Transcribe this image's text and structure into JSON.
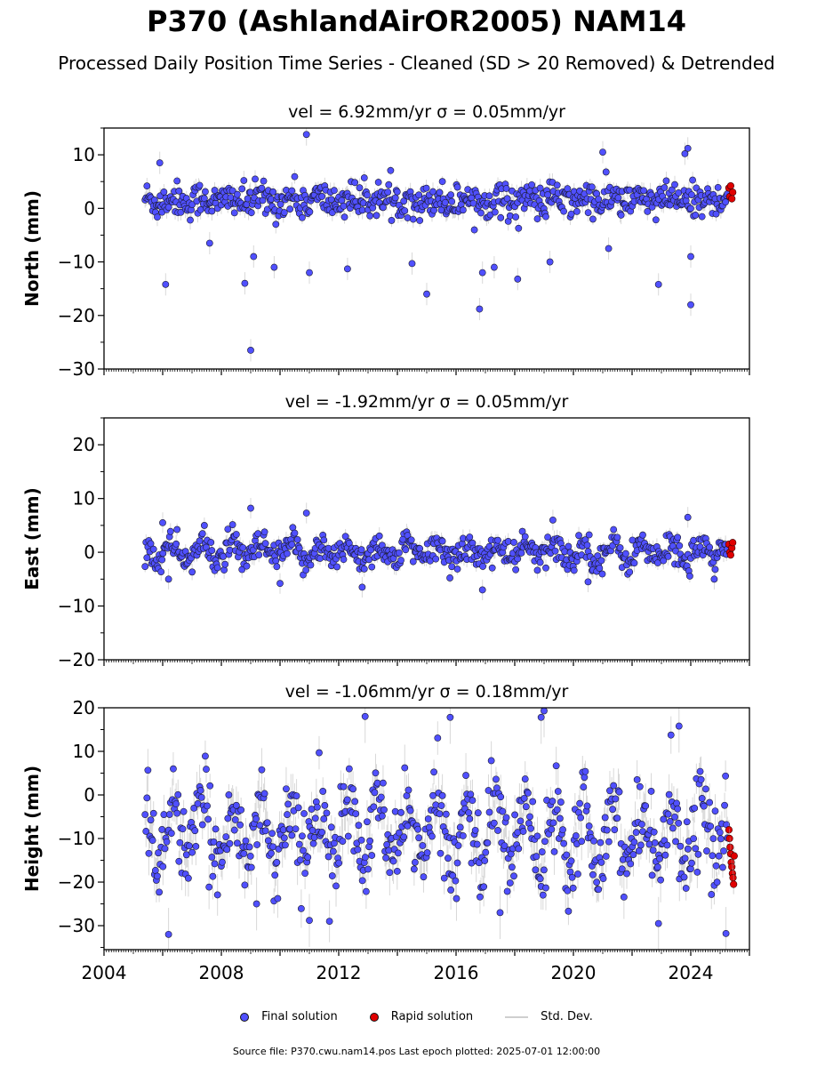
{
  "figure": {
    "title": "P370 (AshlandAirOR2005) NAM14",
    "subtitle": "Processed Daily Position Time Series - Cleaned (SD > 20 Removed) & Detrended",
    "footer": "Source file: P370.cwu.nam14.pos  Last epoch plotted: 2025-07-01 12:00:00"
  },
  "legend": {
    "final_label": "Final solution",
    "rapid_label": "Rapid solution",
    "std_label": "Std. Dev."
  },
  "colors": {
    "final": "#5050ff",
    "rapid": "#e00000",
    "marker_edge": "#1a1a2e",
    "std_dev": "#a8a8a8"
  },
  "chart_data": [
    {
      "type": "scatter",
      "title": "vel = 6.92mm/yr   σ = 0.05mm/yr",
      "ylabel": "North (mm)",
      "xlim": [
        2004.0,
        2026.0
      ],
      "ylim": [
        -30,
        15
      ],
      "yticks": [
        10,
        0,
        -10,
        -20,
        -30
      ],
      "ytick_labels": [
        "10",
        "0",
        "−10",
        "−20",
        "−30"
      ],
      "x_range": [
        2005.4,
        2025.25
      ],
      "center": 1.5,
      "noise": 1.6,
      "seasonal_amp": 0.6,
      "err": 1.3,
      "outliers": [
        {
          "x": 2005.9,
          "y": 8.5
        },
        {
          "x": 2006.1,
          "y": -14.2
        },
        {
          "x": 2007.6,
          "y": -6.5
        },
        {
          "x": 2008.8,
          "y": -14.0
        },
        {
          "x": 2009.0,
          "y": -26.5
        },
        {
          "x": 2009.1,
          "y": -9.0
        },
        {
          "x": 2010.9,
          "y": 13.8
        },
        {
          "x": 2011.0,
          "y": -12.0
        },
        {
          "x": 2012.3,
          "y": -11.3
        },
        {
          "x": 2014.5,
          "y": -10.3
        },
        {
          "x": 2015.0,
          "y": -16.0
        },
        {
          "x": 2016.8,
          "y": -18.8
        },
        {
          "x": 2016.9,
          "y": -12.0
        },
        {
          "x": 2018.1,
          "y": -13.2
        },
        {
          "x": 2019.2,
          "y": -10.0
        },
        {
          "x": 2021.0,
          "y": 10.5
        },
        {
          "x": 2021.2,
          "y": -7.5
        },
        {
          "x": 2022.9,
          "y": -14.2
        },
        {
          "x": 2023.9,
          "y": 11.2
        },
        {
          "x": 2024.0,
          "y": -18.0
        },
        {
          "x": 2023.8,
          "y": 10.2
        },
        {
          "x": 2024.0,
          "y": -9.0
        },
        {
          "x": 2009.8,
          "y": -11.0
        },
        {
          "x": 2017.3,
          "y": -11.0
        }
      ],
      "rapid": {
        "x": [
          2025.3,
          2025.33,
          2025.36,
          2025.4,
          2025.43
        ],
        "y": [
          3.8,
          2.2,
          4.2,
          1.8,
          3.0
        ]
      }
    },
    {
      "type": "scatter",
      "title": "vel = -1.92mm/yr   σ = 0.05mm/yr",
      "ylabel": "East (mm)",
      "xlim": [
        2004.0,
        2026.0
      ],
      "ylim": [
        -20,
        25
      ],
      "yticks": [
        20,
        10,
        0,
        -10,
        -20
      ],
      "ytick_labels": [
        "20",
        "10",
        "0",
        "−10",
        "−20"
      ],
      "x_range": [
        2005.4,
        2025.25
      ],
      "center": 0.0,
      "noise": 1.4,
      "seasonal_amp": 1.4,
      "err": 1.2,
      "outliers": [
        {
          "x": 2009.0,
          "y": 8.2
        },
        {
          "x": 2010.9,
          "y": 7.3
        },
        {
          "x": 2006.0,
          "y": 5.5
        },
        {
          "x": 2019.3,
          "y": 6.0
        },
        {
          "x": 2023.9,
          "y": 6.5
        },
        {
          "x": 2016.9,
          "y": -7.0
        },
        {
          "x": 2012.8,
          "y": -6.5
        },
        {
          "x": 2020.5,
          "y": -5.5
        },
        {
          "x": 2024.8,
          "y": -5.0
        },
        {
          "x": 2006.2,
          "y": -5.0
        },
        {
          "x": 2010.0,
          "y": -5.8
        }
      ],
      "rapid": {
        "x": [
          2025.3,
          2025.33,
          2025.36,
          2025.4,
          2025.43
        ],
        "y": [
          1.5,
          0.0,
          -0.5,
          0.8,
          1.8
        ]
      }
    },
    {
      "type": "scatter",
      "title": "vel = -1.06mm/yr   σ = 0.18mm/yr",
      "ylabel": "Height (mm)",
      "xlim": [
        2004.0,
        2026.0
      ],
      "ylim": [
        -35.5,
        20
      ],
      "yticks": [
        20,
        10,
        0,
        -10,
        -20,
        -30
      ],
      "ytick_labels": [
        "20",
        "10",
        "0",
        "−10",
        "−20",
        "−30"
      ],
      "xticks": [
        2004,
        2008,
        2012,
        2016,
        2020,
        2024
      ],
      "xtick_labels": [
        "2004",
        "2008",
        "2012",
        "2016",
        "2020",
        "2024"
      ],
      "x_range": [
        2005.4,
        2025.25
      ],
      "center": -8.5,
      "noise": 4.5,
      "seasonal_amp": 7.0,
      "err": 3.8,
      "outliers": [
        {
          "x": 2006.2,
          "y": -32.0
        },
        {
          "x": 2012.9,
          "y": 18.0
        },
        {
          "x": 2015.8,
          "y": 17.8
        },
        {
          "x": 2019.0,
          "y": 19.3
        },
        {
          "x": 2018.9,
          "y": 17.8
        },
        {
          "x": 2022.9,
          "y": -29.5
        },
        {
          "x": 2011.0,
          "y": -28.8
        },
        {
          "x": 2023.6,
          "y": 15.8
        },
        {
          "x": 2025.2,
          "y": -31.8
        },
        {
          "x": 2009.2,
          "y": -25.0
        },
        {
          "x": 2017.5,
          "y": -27.0
        }
      ],
      "rapid": {
        "x": [
          2025.3,
          2025.32,
          2025.34,
          2025.36,
          2025.38,
          2025.4,
          2025.42,
          2025.44,
          2025.46,
          2025.48
        ],
        "y": [
          -8.0,
          -10.0,
          -12.0,
          -13.5,
          -15.5,
          -16.5,
          -18.0,
          -19.0,
          -20.5,
          -14.0
        ]
      }
    }
  ]
}
